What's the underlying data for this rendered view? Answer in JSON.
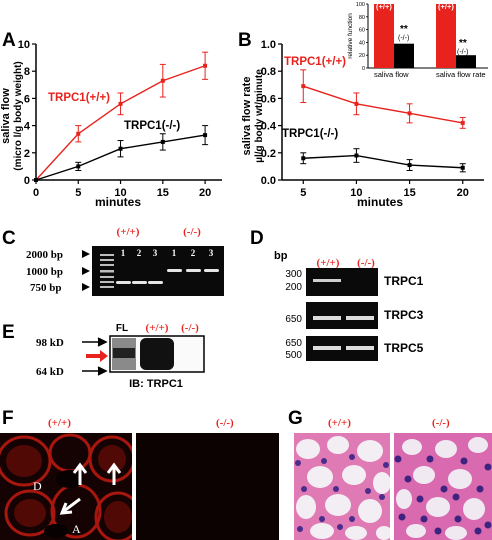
{
  "panels": {
    "A": {
      "label": "A",
      "ylabel_line1": "saliva flow",
      "ylabel_line2": "(micro l/g body weight)",
      "xlabel": "minutes",
      "yticks": [
        "0",
        "2",
        "4",
        "6",
        "8",
        "10"
      ],
      "xticks": [
        "0",
        "5",
        "10",
        "15",
        "20"
      ],
      "series_labels": [
        "TRPC1(+/+)",
        "TRPC1(-/-)"
      ]
    },
    "B": {
      "label": "B",
      "ylabel_line1": "saliva flow rate",
      "ylabel_line2": "µl/g body wt/minute",
      "xlabel": "minutes",
      "yticks": [
        "0.0",
        "0.2",
        "0.4",
        "0.6",
        "0.8",
        "1.0"
      ],
      "xticks": [
        "5",
        "10",
        "15",
        "20"
      ],
      "series_labels": [
        "TRPC1(+/+)",
        "TRPC1(-/-)"
      ],
      "inset": {
        "ylabel": "relative function",
        "yticks": [
          "0",
          "20",
          "40",
          "60",
          "80",
          "100"
        ],
        "bar_top_labels": [
          "(+/+)",
          "(+/+)"
        ],
        "sig": [
          "**",
          "**"
        ],
        "ko_labels": [
          "(-/-)",
          "(-/-)"
        ],
        "categories": [
          "saliva flow",
          "saliva flow rate"
        ]
      }
    },
    "C": {
      "label": "C",
      "markers": [
        "2000 bp",
        "1000 bp",
        "750 bp"
      ],
      "groups": [
        "(+/+)",
        "(-/-)"
      ],
      "lanes": [
        "1",
        "2",
        "3",
        "1",
        "2",
        "3"
      ]
    },
    "D": {
      "label": "D",
      "bp": "bp",
      "groups": [
        "(+/+)",
        "(-/-)"
      ],
      "rows": [
        {
          "name": "TRPC1",
          "marks": [
            "300",
            "200"
          ]
        },
        {
          "name": "TRPC3",
          "marks": [
            "650"
          ]
        },
        {
          "name": "TRPC5",
          "marks": [
            "650",
            "500"
          ]
        }
      ]
    },
    "E": {
      "label": "E",
      "markers": [
        "98 kD",
        "64 kD"
      ],
      "lanes": [
        "FL",
        "(+/+)",
        "(-/-)"
      ],
      "caption": "IB: TRPC1"
    },
    "F": {
      "label": "F",
      "groups": [
        "(+/+)",
        "(-/-)"
      ],
      "letters": [
        "D",
        "A"
      ]
    },
    "G": {
      "label": "G",
      "groups": [
        "(+/+)",
        "(-/-)"
      ]
    }
  },
  "colors": {
    "wt": "#e8231e",
    "ko": "#000000",
    "gel_bg": "#0a0a0a",
    "gel_band": "#e6e6e6",
    "fluor": "#c41a10",
    "he_pink": "#e07ab4",
    "he_nuclei": "#4b2c8c"
  },
  "chart_data": [
    {
      "type": "line",
      "title": "",
      "xlabel": "minutes",
      "ylabel": "saliva flow (micro l/g body weight)",
      "xlim": [
        0,
        22
      ],
      "ylim": [
        0,
        10
      ],
      "x": [
        0,
        5,
        10,
        15,
        20
      ],
      "series": [
        {
          "name": "TRPC1(+/+)",
          "color": "#e8231e",
          "values": [
            0,
            3.4,
            5.6,
            7.3,
            8.4
          ],
          "errors": [
            0,
            0.6,
            0.8,
            1.2,
            1.0
          ]
        },
        {
          "name": "TRPC1(-/-)",
          "color": "#000000",
          "values": [
            0,
            1.0,
            2.3,
            2.8,
            3.3
          ],
          "errors": [
            0,
            0.3,
            0.6,
            0.6,
            0.7
          ]
        }
      ],
      "legend": "inline labels"
    },
    {
      "type": "line",
      "title": "",
      "xlabel": "minutes",
      "ylabel": "saliva flow rate µl/g body wt/minute",
      "xlim": [
        3,
        22
      ],
      "ylim": [
        0,
        1.0
      ],
      "x": [
        5,
        10,
        15,
        20
      ],
      "series": [
        {
          "name": "TRPC1(+/+)",
          "color": "#e8231e",
          "values": [
            0.69,
            0.56,
            0.49,
            0.42
          ],
          "errors": [
            0.12,
            0.08,
            0.07,
            0.04
          ]
        },
        {
          "name": "TRPC1(-/-)",
          "color": "#000000",
          "values": [
            0.16,
            0.18,
            0.11,
            0.09
          ],
          "errors": [
            0.04,
            0.05,
            0.04,
            0.03
          ]
        }
      ],
      "legend": "inline labels"
    },
    {
      "type": "bar",
      "title": "",
      "ylabel": "relative function",
      "ylim": [
        0,
        100
      ],
      "categories": [
        "saliva flow",
        "saliva flow rate"
      ],
      "series": [
        {
          "name": "(+/+)",
          "color": "#e8231e",
          "values": [
            100,
            100
          ]
        },
        {
          "name": "(-/-)",
          "color": "#000000",
          "values": [
            38,
            20
          ]
        }
      ]
    }
  ]
}
